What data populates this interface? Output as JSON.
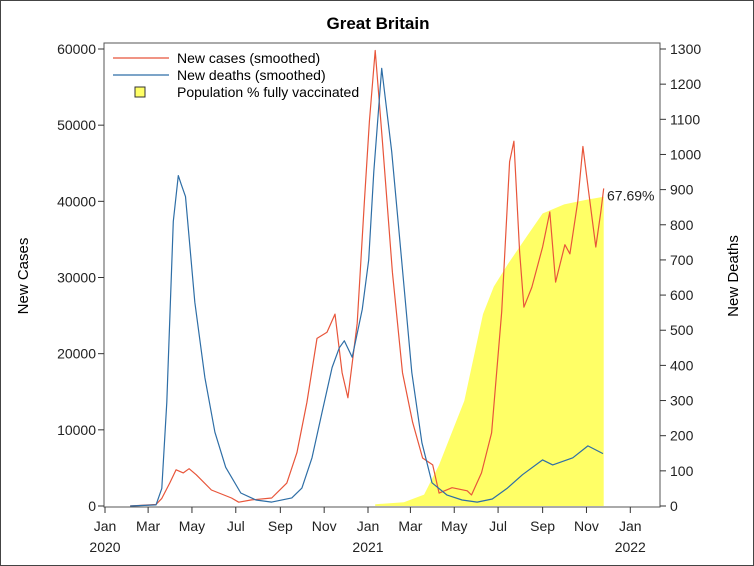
{
  "chart_data": {
    "type": "line",
    "title": "Great Britain",
    "ylabel_left": "New Cases",
    "ylabel_right": "New Deaths",
    "ylim_left": [
      0,
      60000
    ],
    "ylim_right": [
      0,
      1300
    ],
    "ylim_vaccinated_percent": [
      0,
      100
    ],
    "xlim": [
      "2020-01-01",
      "2022-02-10"
    ],
    "grid": false,
    "legend_position": "top-left",
    "left_ticks": [
      "0",
      "10000",
      "20000",
      "30000",
      "40000",
      "50000",
      "60000"
    ],
    "right_ticks": [
      "0",
      "100",
      "200",
      "300",
      "400",
      "500",
      "600",
      "700",
      "800",
      "900",
      "1000",
      "1100",
      "1200",
      "1300"
    ],
    "x_ticks": [
      {
        "date": "2020-01-01",
        "label": "Jan",
        "year": "2020"
      },
      {
        "date": "2020-03-01",
        "label": "Mar",
        "year": ""
      },
      {
        "date": "2020-05-01",
        "label": "May",
        "year": ""
      },
      {
        "date": "2020-07-01",
        "label": "Jul",
        "year": ""
      },
      {
        "date": "2020-09-01",
        "label": "Sep",
        "year": ""
      },
      {
        "date": "2020-11-01",
        "label": "Nov",
        "year": ""
      },
      {
        "date": "2021-01-01",
        "label": "Jan",
        "year": "2021"
      },
      {
        "date": "2021-03-01",
        "label": "Mar",
        "year": ""
      },
      {
        "date": "2021-05-01",
        "label": "May",
        "year": ""
      },
      {
        "date": "2021-07-01",
        "label": "Jul",
        "year": ""
      },
      {
        "date": "2021-09-01",
        "label": "Sep",
        "year": ""
      },
      {
        "date": "2021-11-01",
        "label": "Nov",
        "year": ""
      },
      {
        "date": "2022-01-01",
        "label": "Jan",
        "year": "2022"
      }
    ],
    "end_label": "67.69%",
    "colors": {
      "cases": "#e8553a",
      "deaths": "#2e6ea6",
      "vaccinated": "#ffff66"
    },
    "series": [
      {
        "name": "New cases (smoothed)",
        "axis": "left",
        "points": [
          [
            "2020-02-05",
            0
          ],
          [
            "2020-03-12",
            200
          ],
          [
            "2020-03-20",
            1000
          ],
          [
            "2020-03-31",
            3000
          ],
          [
            "2020-04-09",
            4750
          ],
          [
            "2020-04-19",
            4350
          ],
          [
            "2020-04-27",
            4900
          ],
          [
            "2020-05-07",
            4100
          ],
          [
            "2020-05-28",
            2100
          ],
          [
            "2020-06-25",
            1050
          ],
          [
            "2020-07-05",
            500
          ],
          [
            "2020-07-23",
            800
          ],
          [
            "2020-08-20",
            1050
          ],
          [
            "2020-09-10",
            3000
          ],
          [
            "2020-09-24",
            7000
          ],
          [
            "2020-10-08",
            13600
          ],
          [
            "2020-10-22",
            22000
          ],
          [
            "2020-11-05",
            22800
          ],
          [
            "2020-11-16",
            25200
          ],
          [
            "2020-11-26",
            17500
          ],
          [
            "2020-12-04",
            14200
          ],
          [
            "2020-12-17",
            24000
          ],
          [
            "2020-12-27",
            40000
          ],
          [
            "2021-01-03",
            50500
          ],
          [
            "2021-01-11",
            59800
          ],
          [
            "2021-01-21",
            47900
          ],
          [
            "2021-02-04",
            30700
          ],
          [
            "2021-02-18",
            17500
          ],
          [
            "2021-03-04",
            11000
          ],
          [
            "2021-03-18",
            6300
          ],
          [
            "2021-04-01",
            5400
          ],
          [
            "2021-04-10",
            1700
          ],
          [
            "2021-04-28",
            2400
          ],
          [
            "2021-05-19",
            2000
          ],
          [
            "2021-05-25",
            1450
          ],
          [
            "2021-06-08",
            4350
          ],
          [
            "2021-06-22",
            9600
          ],
          [
            "2021-07-06",
            25500
          ],
          [
            "2021-07-17",
            45200
          ],
          [
            "2021-07-23",
            47900
          ],
          [
            "2021-07-31",
            33400
          ],
          [
            "2021-08-06",
            26100
          ],
          [
            "2021-08-17",
            28700
          ],
          [
            "2021-09-01",
            34000
          ],
          [
            "2021-09-11",
            38600
          ],
          [
            "2021-09-19",
            29400
          ],
          [
            "2021-10-02",
            34300
          ],
          [
            "2021-10-09",
            33100
          ],
          [
            "2021-10-20",
            40000
          ],
          [
            "2021-10-27",
            47200
          ],
          [
            "2021-11-04",
            41300
          ],
          [
            "2021-11-14",
            34000
          ],
          [
            "2021-11-21",
            38600
          ],
          [
            "2021-11-25",
            41700
          ]
        ]
      },
      {
        "name": "New deaths (smoothed)",
        "axis": "right",
        "points": [
          [
            "2020-02-05",
            0
          ],
          [
            "2020-03-12",
            3
          ],
          [
            "2020-03-20",
            50
          ],
          [
            "2020-03-27",
            295
          ],
          [
            "2020-04-05",
            810
          ],
          [
            "2020-04-12",
            940
          ],
          [
            "2020-04-16",
            915
          ],
          [
            "2020-04-22",
            880
          ],
          [
            "2020-05-05",
            580
          ],
          [
            "2020-05-19",
            365
          ],
          [
            "2020-06-02",
            210
          ],
          [
            "2020-06-17",
            110
          ],
          [
            "2020-07-08",
            37
          ],
          [
            "2020-07-29",
            17
          ],
          [
            "2020-08-20",
            11
          ],
          [
            "2020-09-17",
            23
          ],
          [
            "2020-10-01",
            51
          ],
          [
            "2020-10-15",
            137
          ],
          [
            "2020-10-29",
            266
          ],
          [
            "2020-11-12",
            394
          ],
          [
            "2020-11-22",
            450
          ],
          [
            "2020-11-29",
            470
          ],
          [
            "2020-12-10",
            423
          ],
          [
            "2020-12-24",
            560
          ],
          [
            "2021-01-02",
            700
          ],
          [
            "2021-01-09",
            951
          ],
          [
            "2021-01-20",
            1245
          ],
          [
            "2021-02-03",
            1008
          ],
          [
            "2021-02-17",
            694
          ],
          [
            "2021-03-03",
            380
          ],
          [
            "2021-03-17",
            180
          ],
          [
            "2021-03-31",
            66
          ],
          [
            "2021-04-21",
            31
          ],
          [
            "2021-05-12",
            17
          ],
          [
            "2021-06-02",
            11
          ],
          [
            "2021-06-23",
            20
          ],
          [
            "2021-07-14",
            51
          ],
          [
            "2021-08-04",
            89
          ],
          [
            "2021-09-01",
            131
          ],
          [
            "2021-09-15",
            117
          ],
          [
            "2021-10-13",
            137
          ],
          [
            "2021-11-03",
            171
          ],
          [
            "2021-11-24",
            149
          ]
        ]
      },
      {
        "name": "Population % fully vaccinated",
        "axis": "percent",
        "type": "area",
        "points": [
          [
            "2021-01-11",
            0.4
          ],
          [
            "2021-02-20",
            0.8
          ],
          [
            "2021-03-20",
            2.5
          ],
          [
            "2021-04-10",
            9
          ],
          [
            "2021-04-25",
            15
          ],
          [
            "2021-05-15",
            23
          ],
          [
            "2021-06-10",
            42
          ],
          [
            "2021-06-25",
            48
          ],
          [
            "2021-07-15",
            53
          ],
          [
            "2021-08-10",
            59
          ],
          [
            "2021-09-01",
            64
          ],
          [
            "2021-10-01",
            66
          ],
          [
            "2021-11-01",
            67
          ],
          [
            "2021-11-25",
            67.69
          ]
        ]
      }
    ]
  }
}
